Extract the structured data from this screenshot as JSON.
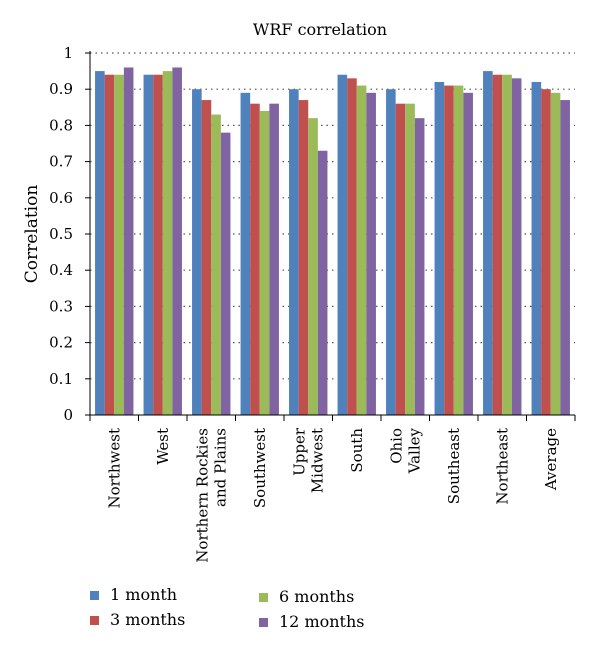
{
  "chart_data": {
    "type": "bar",
    "title": "WRF correlation",
    "xlabel": "",
    "ylabel": "Correlation",
    "ylim": [
      0,
      1
    ],
    "yticks": [
      "0",
      "0.1",
      "0.2",
      "0.3",
      "0.4",
      "0.5",
      "0.6",
      "0.7",
      "0.8",
      "0.9",
      "1"
    ],
    "grid": "horizontal dotted",
    "legend_position": "bottom",
    "categories": [
      [
        "Northwest"
      ],
      [
        "West"
      ],
      [
        "Northern Rockies",
        "and Plains"
      ],
      [
        "Southwest"
      ],
      [
        "Upper",
        "Midwest"
      ],
      [
        "South"
      ],
      [
        "Ohio",
        "Valley"
      ],
      [
        "Southeast"
      ],
      [
        "Northeast"
      ],
      [
        "Average"
      ]
    ],
    "series": [
      {
        "name": "1 month",
        "color": "#4f81bd",
        "values": [
          0.95,
          0.94,
          0.9,
          0.89,
          0.9,
          0.94,
          0.9,
          0.92,
          0.95,
          0.92
        ]
      },
      {
        "name": "3 months",
        "color": "#c0504d",
        "values": [
          0.94,
          0.94,
          0.87,
          0.86,
          0.87,
          0.93,
          0.86,
          0.91,
          0.94,
          0.9
        ]
      },
      {
        "name": "6 months",
        "color": "#9bbb59",
        "values": [
          0.94,
          0.95,
          0.83,
          0.84,
          0.82,
          0.91,
          0.86,
          0.91,
          0.94,
          0.89
        ]
      },
      {
        "name": "12 months",
        "color": "#8064a2",
        "values": [
          0.96,
          0.96,
          0.78,
          0.86,
          0.73,
          0.89,
          0.82,
          0.89,
          0.93,
          0.87
        ]
      }
    ]
  }
}
